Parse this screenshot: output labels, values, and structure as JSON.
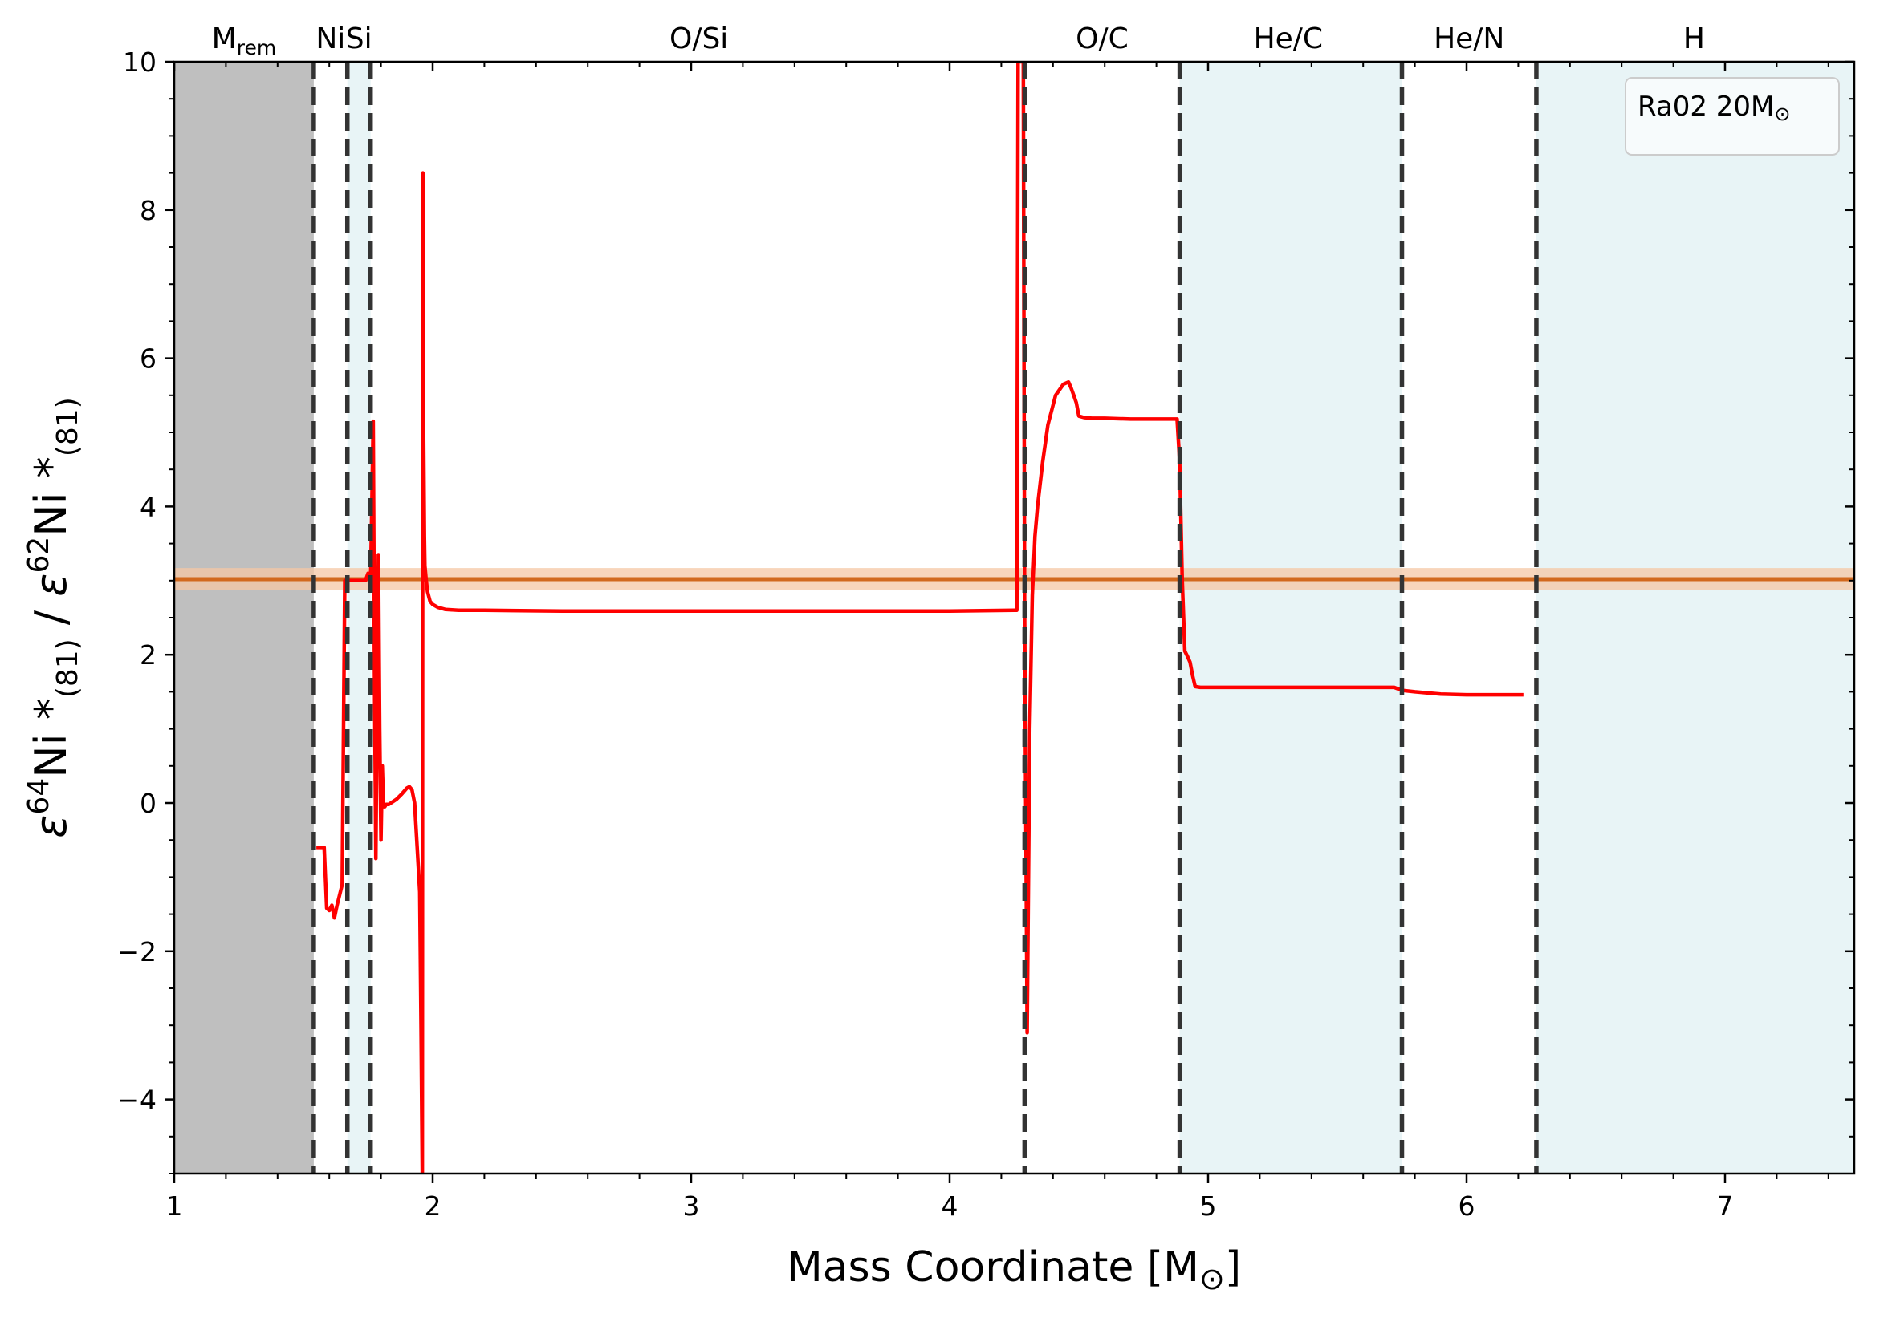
{
  "chart_data": {
    "type": "line",
    "title": "",
    "xlabel": "Mass Coordinate [M⊙]",
    "xlabel_main": "Mass Coordinate [M",
    "xlabel_sym": "⊙",
    "xlabel_close": "]",
    "ylabel": "ε⁶⁴Ni*₍₈₁₎ / ε⁶²Ni*₍₈₁₎",
    "ylabel_parts": {
      "eps1": "ε",
      "sup1": "64",
      "ni1": "Ni",
      "star1": " *",
      "sub1": "(81)",
      "slash": " / ",
      "eps2": "ε",
      "sup2": "62",
      "ni2": "Ni",
      "star2": " *",
      "sub2": "(81)"
    },
    "xlim": [
      1,
      7.5
    ],
    "ylim": [
      -5,
      10
    ],
    "xticks": [
      1,
      2,
      3,
      4,
      5,
      6,
      7
    ],
    "xtick_labels": [
      "1",
      "2",
      "3",
      "4",
      "5",
      "6",
      "7"
    ],
    "yticks": [
      -4,
      -2,
      0,
      2,
      4,
      6,
      8,
      10
    ],
    "ytick_labels": [
      "−4",
      "−2",
      "0",
      "2",
      "4",
      "6",
      "8",
      "10"
    ],
    "legend": {
      "text": "Ra02 20M",
      "sym": "⊙",
      "placement": "top-right"
    },
    "zones": [
      {
        "label": "M",
        "sub": "rem",
        "x0": 1.0,
        "x1": 1.54,
        "fill": "#bfbfbf",
        "label_x": 1.27
      },
      {
        "label": "Ni",
        "x0": 1.54,
        "x1": 1.67,
        "fill": "none",
        "label_x": 1.605
      },
      {
        "label": "Si",
        "x0": 1.67,
        "x1": 1.76,
        "fill": "#e8f4f6",
        "label_x": 1.715
      },
      {
        "label": "O/Si",
        "x0": 1.76,
        "x1": 4.29,
        "fill": "none",
        "label_x": 3.03
      },
      {
        "label": "O/C",
        "x0": 4.29,
        "x1": 4.89,
        "fill": "none",
        "label_x": 4.59
      },
      {
        "label": "He/C",
        "x0": 4.89,
        "x1": 5.75,
        "fill": "#e8f4f6",
        "label_x": 5.31
      },
      {
        "label": "He/N",
        "x0": 5.75,
        "x1": 6.27,
        "fill": "none",
        "label_x": 6.01
      },
      {
        "label": "H",
        "x0": 6.27,
        "x1": 7.5,
        "fill": "#e8f4f6",
        "label_x": 6.88
      }
    ],
    "boundaries": [
      1.54,
      1.67,
      1.76,
      4.29,
      4.89,
      5.75,
      6.27
    ],
    "reference": {
      "y": 3.02,
      "band": [
        2.87,
        3.17
      ],
      "color": "#d2691e",
      "band_color": "#f5c7a4"
    },
    "series": [
      {
        "color": "#ff0000",
        "x": [
          1.55,
          1.58,
          1.59,
          1.6,
          1.61,
          1.62,
          1.63,
          1.65,
          1.66,
          1.67,
          1.69,
          1.7,
          1.71,
          1.72,
          1.73,
          1.74,
          1.75,
          1.76,
          1.77,
          1.775,
          1.78,
          1.785,
          1.79,
          1.795,
          1.8,
          1.805,
          1.81,
          1.815,
          1.82,
          1.83,
          1.86,
          1.88,
          1.9,
          1.91,
          1.92,
          1.93,
          1.94,
          1.95,
          1.955,
          1.96,
          1.962,
          1.965,
          1.968,
          1.97,
          1.975,
          1.98,
          1.99,
          2.0,
          2.02,
          2.05,
          2.1,
          2.2,
          2.5,
          3.0,
          3.5,
          4.0,
          4.25,
          4.26,
          4.265,
          4.27,
          4.28,
          4.285,
          4.29,
          4.3,
          4.31,
          4.32,
          4.33,
          4.34,
          4.36,
          4.38,
          4.41,
          4.44,
          4.46,
          4.47,
          4.48,
          4.49,
          4.5,
          4.51,
          4.52,
          4.55,
          4.6,
          4.7,
          4.8,
          4.88,
          4.89,
          4.9,
          4.91,
          4.92,
          4.93,
          4.94,
          4.95,
          4.97,
          5.0,
          5.2,
          5.5,
          5.72,
          5.75,
          5.8,
          5.9,
          6.0,
          6.1,
          6.22
        ],
        "y": [
          -0.6,
          -0.6,
          -1.42,
          -1.45,
          -1.38,
          -1.55,
          -1.38,
          -1.1,
          3.0,
          3.0,
          3.0,
          3.0,
          3.0,
          3.0,
          3.0,
          3.0,
          3.1,
          3.0,
          5.15,
          1.8,
          -0.75,
          1.5,
          3.35,
          1.0,
          -0.5,
          0.5,
          -0.05,
          -0.05,
          -0.02,
          -0.02,
          0.05,
          0.12,
          0.2,
          0.22,
          0.18,
          0.0,
          -0.6,
          -1.2,
          -3.0,
          -5.0,
          8.5,
          5.0,
          3.6,
          3.2,
          3.0,
          2.85,
          2.72,
          2.68,
          2.64,
          2.61,
          2.6,
          2.6,
          2.59,
          2.59,
          2.59,
          2.59,
          2.6,
          2.6,
          10.0,
          10.0,
          10.0,
          10.0,
          2.6,
          -3.1,
          1.0,
          2.8,
          3.6,
          4.0,
          4.6,
          5.1,
          5.5,
          5.65,
          5.68,
          5.6,
          5.5,
          5.4,
          5.22,
          5.21,
          5.2,
          5.19,
          5.19,
          5.18,
          5.18,
          5.18,
          4.6,
          3.0,
          2.05,
          1.98,
          1.9,
          1.72,
          1.57,
          1.56,
          1.56,
          1.56,
          1.56,
          1.56,
          1.52,
          1.5,
          1.47,
          1.46,
          1.46,
          1.46
        ]
      }
    ]
  }
}
